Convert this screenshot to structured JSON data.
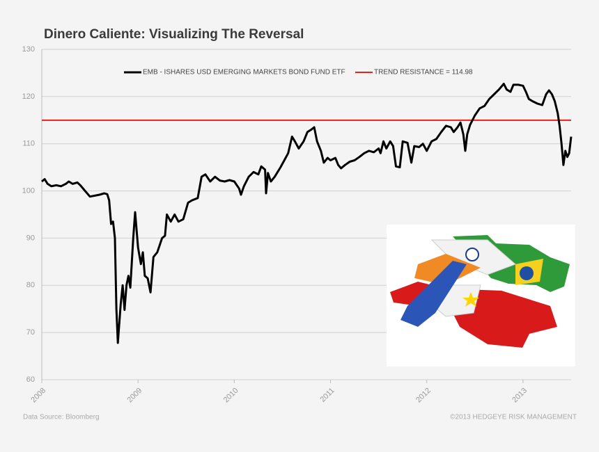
{
  "chart_data": {
    "type": "line",
    "title": "Dinero Caliente: Visualizing The Reversal",
    "source": "Data Source: Bloomberg",
    "copyright": "©2013 HEDGEYE RISK MANAGEMENT",
    "xlim": [
      2008,
      2013.5
    ],
    "xticks": [
      2008,
      2009,
      2010,
      2011,
      2012,
      2013
    ],
    "ylim": [
      60,
      130
    ],
    "yticks": [
      60,
      70,
      80,
      90,
      100,
      110,
      120,
      130
    ],
    "grid": true,
    "x": [
      2008.0,
      2008.03,
      2008.06,
      2008.1,
      2008.15,
      2008.2,
      2008.25,
      2008.28,
      2008.32,
      2008.37,
      2008.4,
      2008.45,
      2008.5,
      2008.55,
      2008.6,
      2008.65,
      2008.68,
      2008.7,
      2008.72,
      2008.74,
      2008.76,
      2008.775,
      2008.79,
      2008.82,
      2008.84,
      2008.86,
      2008.88,
      2008.9,
      2008.92,
      2008.95,
      2008.97,
      2009.0,
      2009.03,
      2009.05,
      2009.07,
      2009.1,
      2009.13,
      2009.16,
      2009.2,
      2009.25,
      2009.28,
      2009.3,
      2009.34,
      2009.38,
      2009.42,
      2009.47,
      2009.52,
      2009.56,
      2009.62,
      2009.66,
      2009.7,
      2009.75,
      2009.8,
      2009.85,
      2009.9,
      2009.95,
      2010.0,
      2010.05,
      2010.07,
      2010.1,
      2010.15,
      2010.2,
      2010.25,
      2010.28,
      2010.32,
      2010.33,
      2010.35,
      2010.38,
      2010.42,
      2010.48,
      2010.52,
      2010.56,
      2010.6,
      2010.63,
      2010.67,
      2010.72,
      2010.76,
      2010.8,
      2010.83,
      2010.86,
      2010.9,
      2010.93,
      2010.97,
      2011.0,
      2011.05,
      2011.08,
      2011.11,
      2011.15,
      2011.2,
      2011.25,
      2011.3,
      2011.35,
      2011.4,
      2011.45,
      2011.5,
      2011.52,
      2011.55,
      2011.58,
      2011.62,
      2011.65,
      2011.68,
      2011.72,
      2011.75,
      2011.8,
      2011.84,
      2011.87,
      2011.92,
      2011.96,
      2012.0,
      2012.05,
      2012.1,
      2012.15,
      2012.2,
      2012.25,
      2012.28,
      2012.32,
      2012.35,
      2012.38,
      2012.4,
      2012.42,
      2012.45,
      2012.5,
      2012.55,
      2012.6,
      2012.65,
      2012.7,
      2012.75,
      2012.8,
      2012.83,
      2012.87,
      2012.9,
      2012.95,
      2013.0,
      2013.03,
      2013.06,
      2013.1,
      2013.15,
      2013.2,
      2013.24,
      2013.27,
      2013.3,
      2013.33,
      2013.36,
      2013.38,
      2013.4,
      2013.42,
      2013.44,
      2013.46,
      2013.48,
      2013.5
    ],
    "series": [
      {
        "name": "EMB - ISHARES USD EMERGING MARKETS BOND FUND ETF",
        "color": "#000000",
        "values": [
          102,
          102.5,
          101.5,
          101,
          101.2,
          101,
          101.5,
          102,
          101.5,
          101.8,
          101.2,
          100,
          98.8,
          99,
          99.2,
          99.5,
          99.3,
          98,
          93,
          93.5,
          90,
          75,
          67.8,
          76,
          80,
          74.8,
          80,
          82,
          79.5,
          90,
          95.5,
          88,
          84.5,
          87,
          82,
          81.5,
          78.5,
          86,
          87,
          90,
          90.5,
          95,
          93.5,
          95,
          93.5,
          94,
          97.5,
          98,
          98.5,
          103,
          103.5,
          102,
          103,
          102.2,
          102,
          102.3,
          102,
          100.5,
          99.2,
          101,
          103,
          104,
          103.5,
          105.2,
          104.5,
          99.5,
          103.8,
          102,
          103,
          105,
          106.5,
          108,
          111.5,
          110.5,
          109,
          110.5,
          112.5,
          113,
          113.5,
          110.5,
          108.5,
          106,
          107,
          106.5,
          107,
          105.5,
          104.8,
          105.5,
          106.2,
          106.5,
          107.2,
          108,
          108.5,
          108.2,
          109,
          108,
          110.5,
          109,
          110.5,
          109.5,
          105.2,
          105,
          110.5,
          110.2,
          106,
          109.5,
          109.3,
          110,
          108.5,
          110.5,
          111,
          112.5,
          113.8,
          113.5,
          112.5,
          113.5,
          114.5,
          112,
          108.5,
          112,
          114,
          116,
          117.5,
          118,
          119.5,
          120.5,
          121.5,
          122.7,
          121.5,
          121,
          122.5,
          122.5,
          122.3,
          121,
          119.5,
          119,
          118.5,
          118.2,
          120.5,
          121.3,
          120.5,
          119,
          116.5,
          113.8,
          110,
          105.5,
          108.5,
          107.2,
          108,
          111.5
        ]
      }
    ],
    "reference_line": {
      "name": "TREND RESISTANCE = 114.98",
      "value": 114.98,
      "color": "#e8201e"
    }
  }
}
